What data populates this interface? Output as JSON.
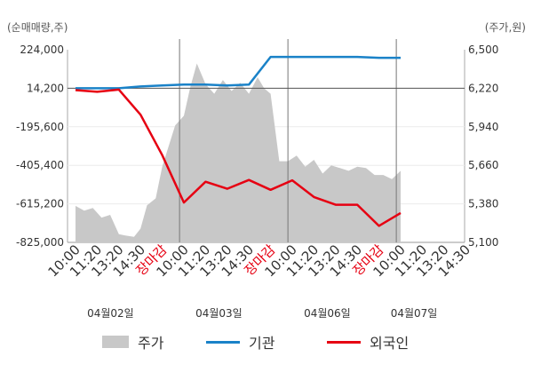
{
  "units": {
    "left": "(순매매량,주)",
    "right": "(주가,원)"
  },
  "legend": [
    {
      "label": "주가",
      "kind": "area",
      "color": "#c8c8c8"
    },
    {
      "label": "기관",
      "kind": "line",
      "color": "#1a82c8"
    },
    {
      "label": "외국인",
      "kind": "line",
      "color": "#e60012"
    }
  ],
  "chart_data": {
    "type": "line",
    "left_axis": {
      "ticks": [
        "224,000",
        "14,200",
        "-195,600",
        "-405,400",
        "-615,200",
        "-825,000"
      ],
      "range": [
        -825000,
        224000
      ]
    },
    "right_axis": {
      "ticks": [
        "6,500",
        "6,220",
        "5,940",
        "5,660",
        "5,380",
        "5,100"
      ],
      "range": [
        5100,
        6500
      ]
    },
    "x_ticks": [
      "10:00",
      "11:20",
      "13:20",
      "14:30",
      "장마감",
      "10:00",
      "11:20",
      "13:20",
      "14:30",
      "장마감",
      "10:00",
      "11:20",
      "13:20",
      "14:30",
      "장마감",
      "10:00",
      "11:20",
      "13:20",
      "14:30"
    ],
    "x_tick_index": [
      0,
      1,
      2,
      3,
      4,
      5,
      6,
      7,
      8,
      9,
      10,
      11,
      12,
      13,
      14,
      15,
      16,
      17,
      18
    ],
    "highlight_ticks": [
      "장마감"
    ],
    "dates": [
      "04월02일",
      "04월03일",
      "04월06일",
      "04월07일"
    ],
    "date_tick_index": [
      1,
      6,
      11,
      15
    ],
    "day_separators": [
      4.8,
      9.8,
      14.8
    ],
    "series": [
      {
        "name": "기관",
        "color": "#1a82c8",
        "x": [
          0,
          1,
          2,
          3,
          4,
          5,
          6,
          7,
          8,
          9,
          10,
          11,
          12,
          13,
          14,
          15
        ],
        "values": [
          14200,
          14200,
          14200,
          24000,
          29000,
          34000,
          34000,
          29000,
          34000,
          185000,
          185000,
          185000,
          185000,
          185000,
          180000,
          180000
        ]
      },
      {
        "name": "외국인",
        "color": "#e60012",
        "x": [
          0,
          1,
          2,
          3,
          4,
          5,
          6,
          7,
          8,
          9,
          10,
          11,
          12,
          13,
          14,
          15
        ],
        "values": [
          4000,
          -5000,
          7000,
          -130000,
          -350000,
          -608000,
          -495000,
          -533000,
          -485000,
          -539000,
          -487000,
          -578000,
          -620000,
          -620000,
          -735000,
          -665000
        ]
      },
      {
        "name": "주가",
        "color": "#c8c8c8",
        "x": [
          0,
          0.4,
          0.8,
          1.2,
          1.6,
          2.0,
          2.3,
          2.7,
          3.0,
          3.3,
          3.7,
          4.0,
          4.3,
          4.6,
          5.0,
          5.3,
          5.6,
          6.0,
          6.4,
          6.8,
          7.2,
          7.6,
          8.0,
          8.4,
          8.7,
          9.0,
          9.4,
          9.8,
          10.2,
          10.6,
          11.0,
          11.4,
          11.8,
          12.2,
          12.6,
          13.0,
          13.4,
          13.8,
          14.2,
          14.6,
          15.0
        ],
        "values": [
          5365,
          5330,
          5350,
          5280,
          5300,
          5160,
          5150,
          5140,
          5200,
          5370,
          5420,
          5650,
          5800,
          5950,
          6020,
          6230,
          6400,
          6250,
          6180,
          6280,
          6200,
          6260,
          6180,
          6300,
          6220,
          6180,
          5690,
          5690,
          5730,
          5650,
          5700,
          5600,
          5660,
          5640,
          5620,
          5650,
          5640,
          5590,
          5590,
          5560,
          5620
        ]
      }
    ]
  }
}
